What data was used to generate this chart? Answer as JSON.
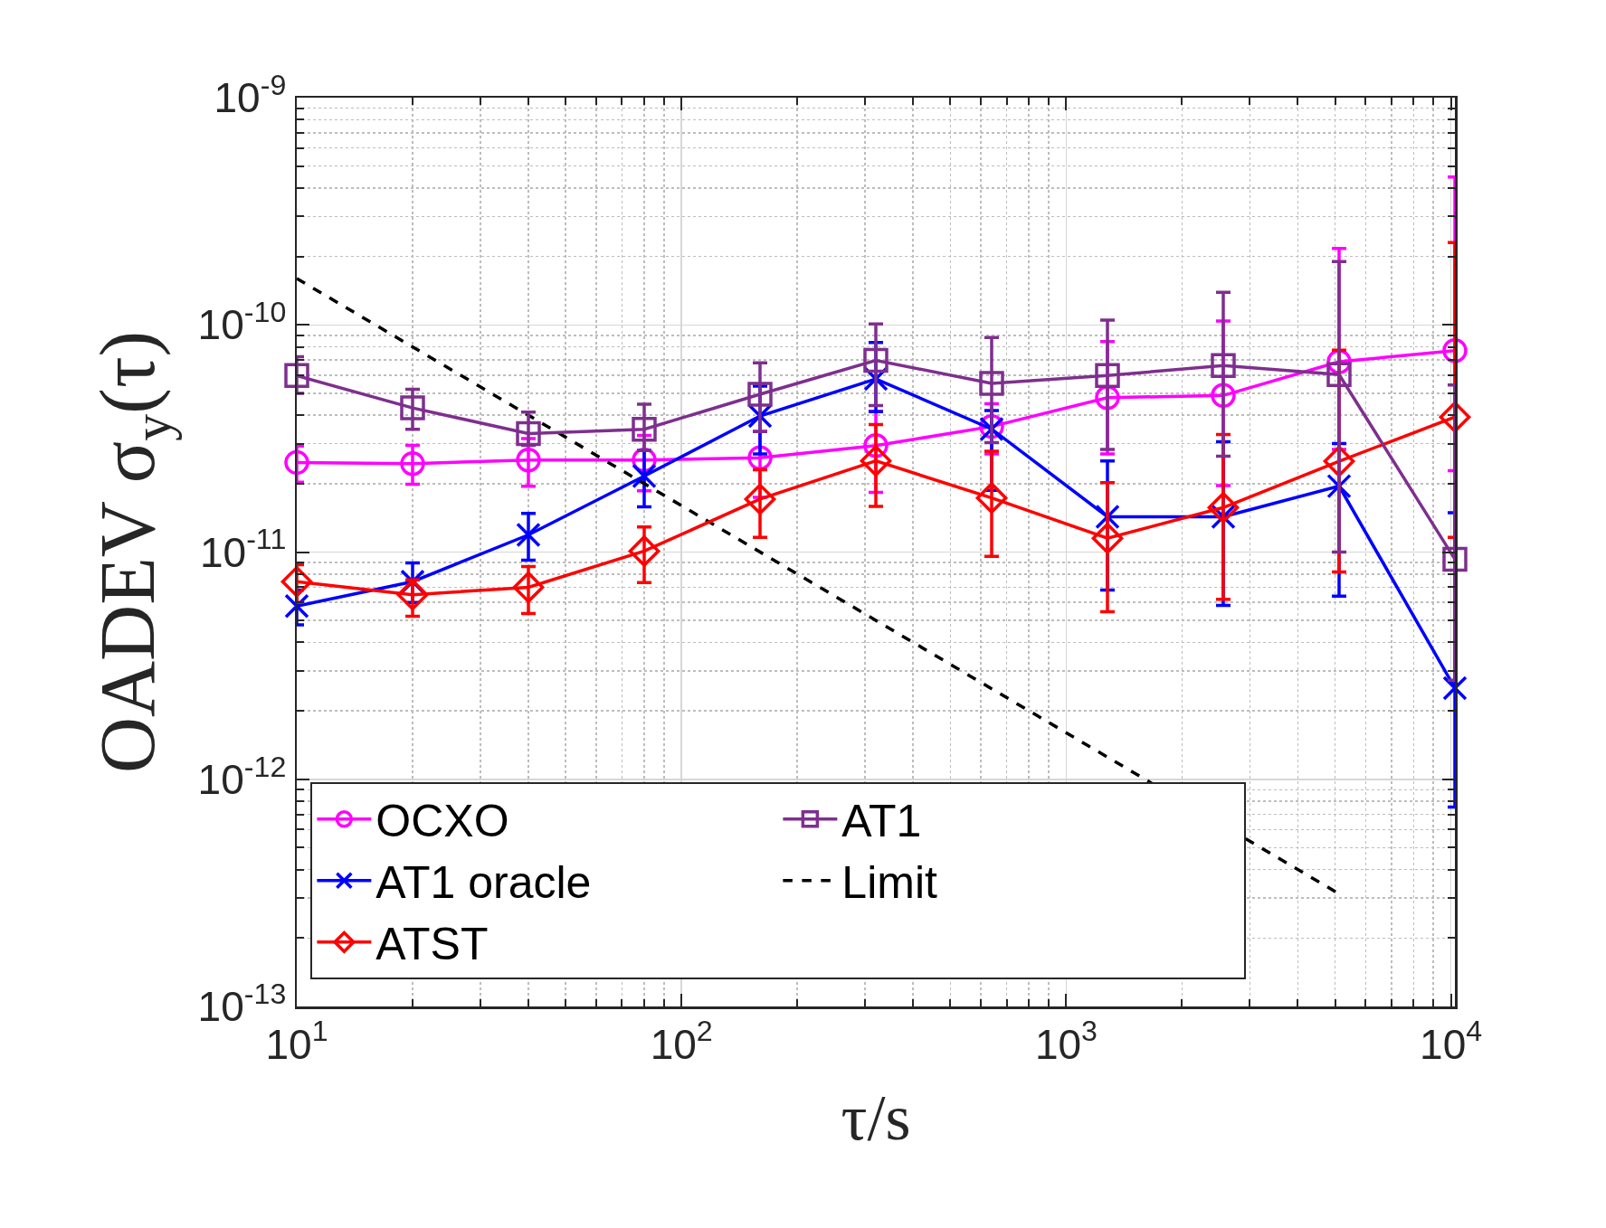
{
  "chart_data": {
    "type": "line",
    "xlabel": "τ/s",
    "ylabel": "OADEV σ$_{y}$(τ)",
    "log": "xy",
    "grid": true,
    "legend": "bottom left",
    "x": [
      10,
      20,
      40,
      80,
      160,
      320,
      640,
      1280,
      2560,
      5120,
      10240
    ],
    "xlim": [
      10,
      10240
    ],
    "xticks": [
      {
        "value": 10,
        "label": "10$^{1}$"
      },
      {
        "value": 100,
        "label": "10$^{2}$"
      },
      {
        "value": 1000,
        "label": "10$^{3}$"
      },
      {
        "value": 10000,
        "label": "10$^{4}$"
      }
    ],
    "ylim": [
      1e-13,
      1e-09
    ],
    "yticks": [
      {
        "value": 1e-13,
        "label": "10$^{-13}$"
      },
      {
        "value": 1e-12,
        "label": "10$^{-12}$"
      },
      {
        "value": 1e-11,
        "label": "10$^{-11}$"
      },
      {
        "value": 1e-10,
        "label": "10$^{-10}$"
      },
      {
        "value": 1e-09,
        "label": "10$^{-9}$"
      }
    ],
    "series": [
      {
        "name": "OCXO",
        "color": "#ff00ff",
        "marker": "circle",
        "line_style": "solid",
        "values": [
          2.48e-11,
          2.45e-11,
          2.54e-11,
          2.54e-11,
          2.6e-11,
          2.94e-11,
          3.57e-11,
          4.78e-11,
          4.89e-11,
          6.88e-11,
          7.7e-11
        ],
        "errors": [
          [
            2.03e-11,
            2.93e-11
          ],
          [
            1.99e-11,
            2.95e-11
          ],
          [
            1.95e-11,
            3.16e-11
          ],
          [
            1.86e-11,
            3.26e-11
          ],
          [
            1.74e-11,
            3.4e-11
          ],
          [
            1.83e-11,
            4.17e-11
          ],
          [
            2.7e-11,
            4.5e-11
          ],
          [
            2.7e-11,
            8.45e-11
          ],
          [
            1.96e-11,
            1.04e-10
          ],
          [
            2.83e-11,
            2.17e-10
          ],
          [
            2.28e-11,
            4.47e-10
          ]
        ]
      },
      {
        "name": "AT1",
        "color": "#7e2f8e",
        "marker": "square",
        "line_style": "solid",
        "values": [
          5.98e-11,
          4.31e-11,
          3.32e-11,
          3.47e-11,
          4.95e-11,
          6.98e-11,
          5.52e-11,
          5.98e-11,
          6.62e-11,
          6.04e-11,
          9.3e-12
        ],
        "errors": [
          [
            4.99e-11,
            7.24e-11
          ],
          [
            3.47e-11,
            5.2e-11
          ],
          [
            2.95e-11,
            4.13e-11
          ],
          [
            2.8e-11,
            4.47e-11
          ],
          [
            3.39e-11,
            6.8e-11
          ],
          [
            4.41e-11,
            1.01e-10
          ],
          [
            3.03e-11,
            8.8e-11
          ],
          [
            2.83e-11,
            1.05e-10
          ],
          [
            2.64e-11,
            1.39e-10
          ],
          [
            1e-11,
            1.9e-10
          ],
          [
            2.73e-12,
            5.44e-11
          ]
        ]
      },
      {
        "name": "AT1 oracle",
        "color": "#0000ff",
        "marker": "cross",
        "line_style": "solid",
        "values": [
          5.78e-12,
          7.41e-12,
          1.19e-11,
          2.16e-11,
          3.97e-11,
          5.78e-11,
          3.48e-11,
          1.43e-11,
          1.43e-11,
          1.95e-11,
          2.52e-12
        ],
        "errors": [
          [
            4.78e-12,
            6.8e-12
          ],
          [
            6e-12,
            8.95e-12
          ],
          [
            9.2e-12,
            1.48e-11
          ],
          [
            1.58e-11,
            2.8e-11
          ],
          [
            2.7e-11,
            5.38e-11
          ],
          [
            4.15e-11,
            8.37e-11
          ],
          [
            1.87e-11,
            4.2e-11
          ],
          [
            6.8e-12,
            2.52e-11
          ],
          [
            5.82e-12,
            3.06e-11
          ],
          [
            6.4e-12,
            3e-11
          ],
          [
            7.55e-13,
            1.49e-11
          ]
        ]
      },
      {
        "name": "Limit",
        "color": "#000000",
        "marker": "none",
        "line_style": "dashed",
        "x": [
          10,
          5120
        ],
        "values": [
          1.6e-10,
          3.13e-13
        ]
      },
      {
        "name": "ATST",
        "color": "#ff0000",
        "marker": "diamond",
        "line_style": "solid",
        "values": [
          7.41e-12,
          6.49e-12,
          7e-12,
          1.01e-11,
          1.71e-11,
          2.52e-11,
          1.73e-11,
          1.15e-11,
          1.57e-11,
          2.51e-11,
          3.93e-11
        ],
        "errors": [
          [
            6e-12,
            8.79e-12
          ],
          [
            5.22e-12,
            7.55e-12
          ],
          [
            5.36e-12,
            8.63e-12
          ],
          [
            7.34e-12,
            1.29e-11
          ],
          [
            1.16e-11,
            2.3e-11
          ],
          [
            1.59e-11,
            3.64e-11
          ],
          [
            9.57e-12,
            2.78e-11
          ],
          [
            5.46e-12,
            2.02e-11
          ],
          [
            6.2e-12,
            3.29e-11
          ],
          [
            8.17e-12,
            7.73e-11
          ],
          [
            1.16e-11,
            2.3e-10
          ]
        ]
      }
    ]
  }
}
